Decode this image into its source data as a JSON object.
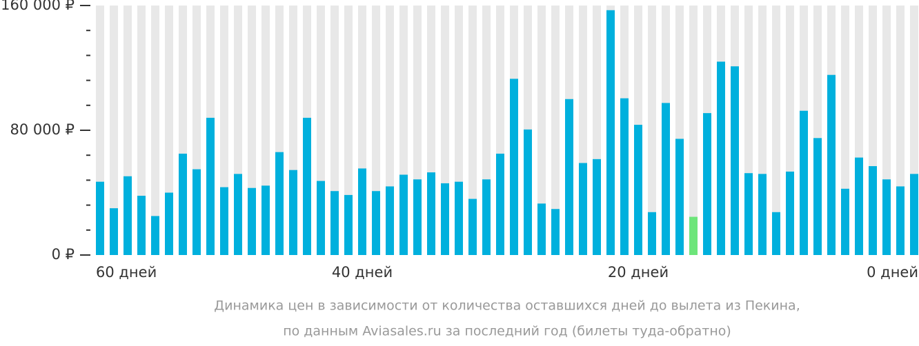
{
  "chart_data": {
    "type": "bar",
    "caption": [
      "Динамика цен в зависимости от количества оставшихся дней до вылета из Пекина,",
      "по данным Aviasales.ru за последний год (билеты туда-обратно)"
    ],
    "categories": [
      "60 дней",
      null,
      null,
      null,
      null,
      null,
      null,
      null,
      null,
      null,
      null,
      null,
      null,
      null,
      null,
      null,
      null,
      null,
      null,
      "40 дней",
      null,
      null,
      null,
      null,
      null,
      null,
      null,
      null,
      null,
      null,
      null,
      null,
      null,
      null,
      null,
      null,
      null,
      null,
      null,
      "20 дней",
      null,
      null,
      null,
      null,
      null,
      null,
      null,
      null,
      null,
      null,
      null,
      null,
      null,
      null,
      null,
      null,
      null,
      null,
      null,
      "0 дней"
    ],
    "values": [
      47000,
      30000,
      50500,
      38000,
      25000,
      40000,
      65000,
      55000,
      88000,
      43500,
      52000,
      43000,
      44500,
      66000,
      54500,
      88000,
      47500,
      41000,
      38500,
      55500,
      41000,
      44000,
      51500,
      48500,
      53000,
      46000,
      47000,
      36000,
      48500,
      65000,
      113000,
      80500,
      33000,
      29500,
      100000,
      59000,
      61500,
      157000,
      100500,
      83500,
      27500,
      97500,
      74500,
      24500,
      91000,
      124000,
      121000,
      52500,
      52000,
      27500,
      53500,
      92500,
      75000,
      115500,
      42500,
      62500,
      57000,
      48500,
      44000,
      52000
    ],
    "color": "#00b0dd",
    "highlight_index": 43,
    "highlight_color": "#6de57a",
    "stripe_color": "#e8e8e8",
    "ylim": [
      0,
      160000
    ],
    "yticks": [
      {
        "value": 0,
        "label": "0 ₽"
      },
      {
        "value": 80000,
        "label": "80 000 ₽"
      },
      {
        "value": 160000,
        "label": "160 000 ₽"
      }
    ],
    "minor_yticks": [
      16000,
      32000,
      48000,
      64000,
      96000,
      112000,
      128000,
      144000
    ]
  }
}
